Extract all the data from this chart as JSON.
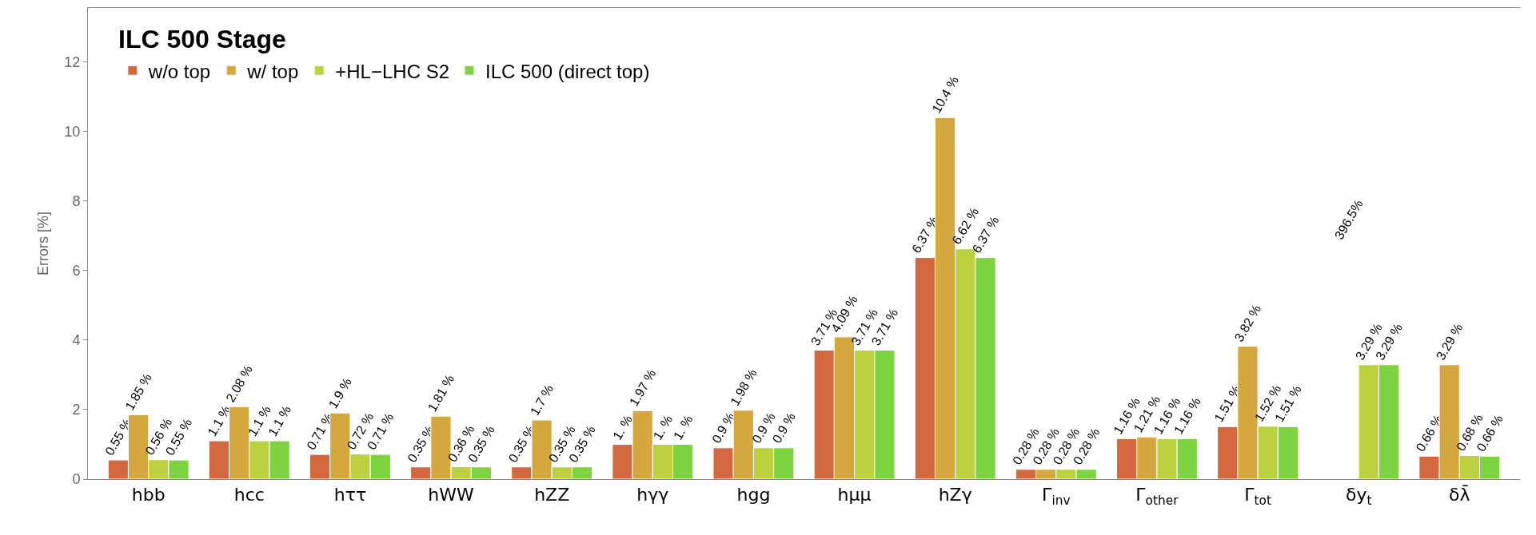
{
  "chart_data": {
    "type": "bar",
    "title": "ILC 500 Stage",
    "ylabel": "Errors [%]",
    "categories": [
      "hbb",
      "hcc",
      "hττ",
      "hWW",
      "hZZ",
      "hγγ",
      "hgg",
      "hμμ",
      "hZγ",
      "Γ$_{inv}$",
      "Γ$_{other}$",
      "Γ$_{tot}$",
      "δy$_{t}$",
      "δλ̄"
    ],
    "series": [
      {
        "name": "w/o top",
        "color": "#d4693f",
        "values": [
          0.55,
          1.1,
          0.71,
          0.35,
          0.35,
          1,
          0.9,
          3.71,
          6.37,
          0.28,
          1.16,
          1.51,
          null,
          0.66
        ],
        "value_labels": [
          "0.55 %",
          "1.1 %",
          "0.71 %",
          "0.35 %",
          "0.35 %",
          "1. %",
          "0.9 %",
          "3.71 %",
          "6.37 %",
          "0.28 %",
          "1.16 %",
          "1.51 %",
          null,
          "0.66 %"
        ]
      },
      {
        "name": "w/ top",
        "color": "#d4a83f",
        "values": [
          1.85,
          2.08,
          1.9,
          1.81,
          1.7,
          1.97,
          1.98,
          4.09,
          10.4,
          0.28,
          1.21,
          3.82,
          null,
          3.29
        ],
        "value_labels": [
          "1.85 %",
          "2.08 %",
          "1.9 %",
          "1.81 %",
          "1.7 %",
          "1.97 %",
          "1.98 %",
          "4.09 %",
          "10.4 %",
          "0.28 %",
          "1.21 %",
          "3.82 %",
          "396.5%",
          "3.29 %"
        ]
      },
      {
        "name": "+HL−LHC S2",
        "color": "#bdd040",
        "values": [
          0.56,
          1.1,
          0.72,
          0.36,
          0.35,
          1,
          0.9,
          3.71,
          6.62,
          0.28,
          1.16,
          1.52,
          3.29,
          0.68
        ],
        "value_labels": [
          "0.56 %",
          "1.1 %",
          "0.72 %",
          "0.36 %",
          "0.35 %",
          "1. %",
          "0.9 %",
          "3.71 %",
          "6.62 %",
          "0.28 %",
          "1.16 %",
          "1.52 %",
          "3.29 %",
          "0.68 %"
        ]
      },
      {
        "name": "ILC 500 (direct top)",
        "color": "#7dd340",
        "values": [
          0.55,
          1.1,
          0.71,
          0.35,
          0.35,
          1,
          0.9,
          3.71,
          6.37,
          0.28,
          1.16,
          1.51,
          3.29,
          0.66
        ],
        "value_labels": [
          "0.55 %",
          "1.1 %",
          "0.71 %",
          "0.35 %",
          "0.35 %",
          "1. %",
          "0.9 %",
          "3.71 %",
          "6.37 %",
          "0.28 %",
          "1.16 %",
          "1.51 %",
          "3.29 %",
          "0.66 %"
        ]
      }
    ],
    "ylim": [
      0,
      13.55
    ],
    "yticks": [
      0,
      2,
      4,
      6,
      8,
      10,
      12
    ],
    "legend": "top left"
  }
}
